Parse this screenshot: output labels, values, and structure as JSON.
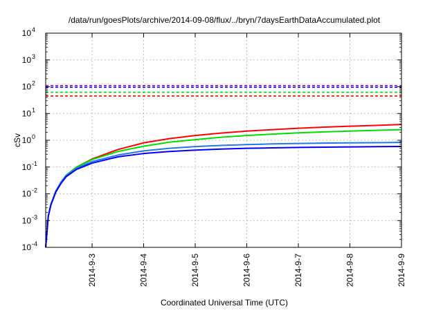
{
  "chart_data": {
    "type": "line",
    "title": "/data/run/goesPlots/archive/2014-09-08/flux/../bryn/7daysEarthDataAccumulated.plot",
    "xlabel": "Coordinated Universal Time (UTC)",
    "ylabel": "cSv",
    "yscale": "log",
    "ylim": [
      0.0001,
      10000
    ],
    "xlim": [
      2.1,
      9.0
    ],
    "grid": true,
    "x_ticks": [
      {
        "x": 3,
        "label": "2014-9-3"
      },
      {
        "x": 4,
        "label": "2014-9-4"
      },
      {
        "x": 5,
        "label": "2014-9-5"
      },
      {
        "x": 6,
        "label": "2014-9-6"
      },
      {
        "x": 7,
        "label": "2014-9-7"
      },
      {
        "x": 8,
        "label": "2014-9-8"
      },
      {
        "x": 9,
        "label": "2014-9-9"
      }
    ],
    "y_ticks": [
      {
        "exp": "-4",
        "value": 0.0001
      },
      {
        "exp": "-3",
        "value": 0.001
      },
      {
        "exp": "-2",
        "value": 0.01
      },
      {
        "exp": "-1",
        "value": 0.1
      },
      {
        "exp": "0",
        "value": 1
      },
      {
        "exp": "1",
        "value": 10
      },
      {
        "exp": "2",
        "value": 100
      },
      {
        "exp": "3",
        "value": 1000
      },
      {
        "exp": "4",
        "value": 10000
      }
    ],
    "tick_base": "10",
    "x": [
      2.1,
      2.15,
      2.2,
      2.3,
      2.4,
      2.5,
      2.7,
      3.0,
      3.5,
      4.0,
      4.5,
      5.0,
      5.5,
      6.0,
      6.5,
      7.0,
      7.5,
      8.0,
      8.5,
      9.0
    ],
    "series": [
      {
        "color": "#ff0000",
        "style": "solid",
        "values": [
          0.0001,
          0.0015,
          0.004,
          0.013,
          0.028,
          0.05,
          0.1,
          0.2,
          0.45,
          0.8,
          1.15,
          1.5,
          1.85,
          2.2,
          2.5,
          2.8,
          3.1,
          3.35,
          3.6,
          3.9
        ]
      },
      {
        "color": "#00dd00",
        "style": "solid",
        "values": [
          0.0001,
          0.0015,
          0.004,
          0.013,
          0.028,
          0.05,
          0.1,
          0.19,
          0.38,
          0.6,
          0.85,
          1.05,
          1.3,
          1.5,
          1.7,
          1.9,
          2.05,
          2.2,
          2.35,
          2.5
        ]
      },
      {
        "color": "#1e78e6",
        "style": "solid",
        "values": [
          0.0001,
          0.0015,
          0.004,
          0.013,
          0.027,
          0.048,
          0.09,
          0.16,
          0.28,
          0.4,
          0.5,
          0.58,
          0.64,
          0.69,
          0.73,
          0.76,
          0.78,
          0.8,
          0.81,
          0.83
        ]
      },
      {
        "color": "#0000ff",
        "style": "solid",
        "values": [
          0.0001,
          0.0014,
          0.0038,
          0.012,
          0.025,
          0.044,
          0.082,
          0.14,
          0.24,
          0.32,
          0.38,
          0.43,
          0.47,
          0.5,
          0.52,
          0.54,
          0.55,
          0.565,
          0.575,
          0.585
        ]
      },
      {
        "color": "#9900cc",
        "style": "dashed",
        "constant": 110
      },
      {
        "color": "#0000ff",
        "style": "dashed",
        "constant": 95
      },
      {
        "color": "#00dd00",
        "style": "dashed",
        "constant": 62
      },
      {
        "color": "#ff0000",
        "style": "dashed",
        "constant": 45
      }
    ]
  }
}
